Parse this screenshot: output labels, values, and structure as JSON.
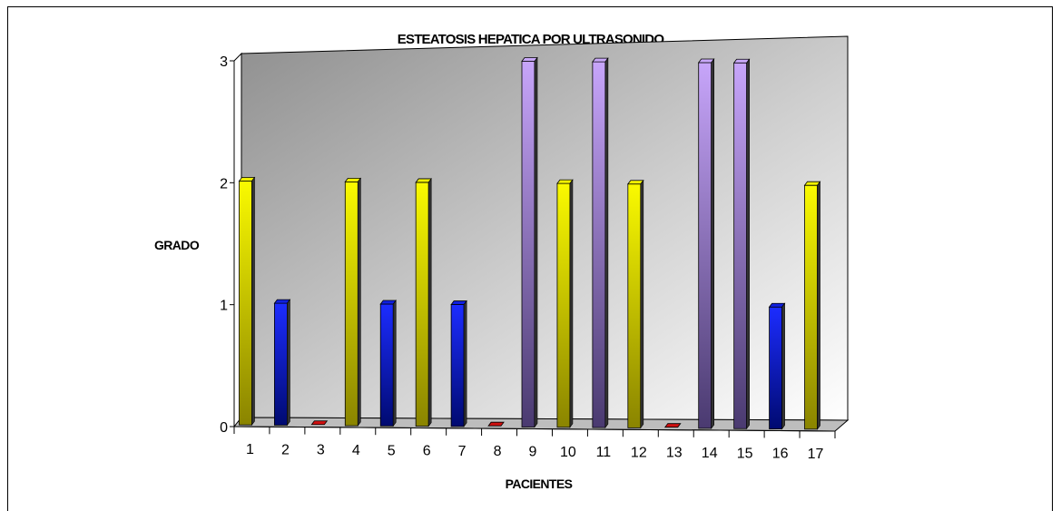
{
  "chart_data": {
    "type": "bar",
    "title": "ESTEATOSIS HEPATICA POR ULTRASONIDO",
    "xlabel": "PACIENTES",
    "ylabel": "GRADO",
    "categories": [
      "1",
      "2",
      "3",
      "4",
      "5",
      "6",
      "7",
      "8",
      "9",
      "10",
      "11",
      "12",
      "13",
      "14",
      "15",
      "16",
      "17"
    ],
    "values": [
      2,
      1,
      0,
      2,
      1,
      2,
      1,
      0,
      3,
      2,
      3,
      2,
      0,
      3,
      3,
      1,
      2
    ],
    "y_ticks": [
      "0",
      "1",
      "2",
      "3"
    ],
    "ylim": [
      0,
      3
    ],
    "grid": false,
    "legend": "none",
    "colors": {
      "grade_0": "#d01010",
      "grade_1": "#1020e0",
      "grade_2": "#f0f000",
      "grade_3": "#c8a8f8"
    }
  }
}
